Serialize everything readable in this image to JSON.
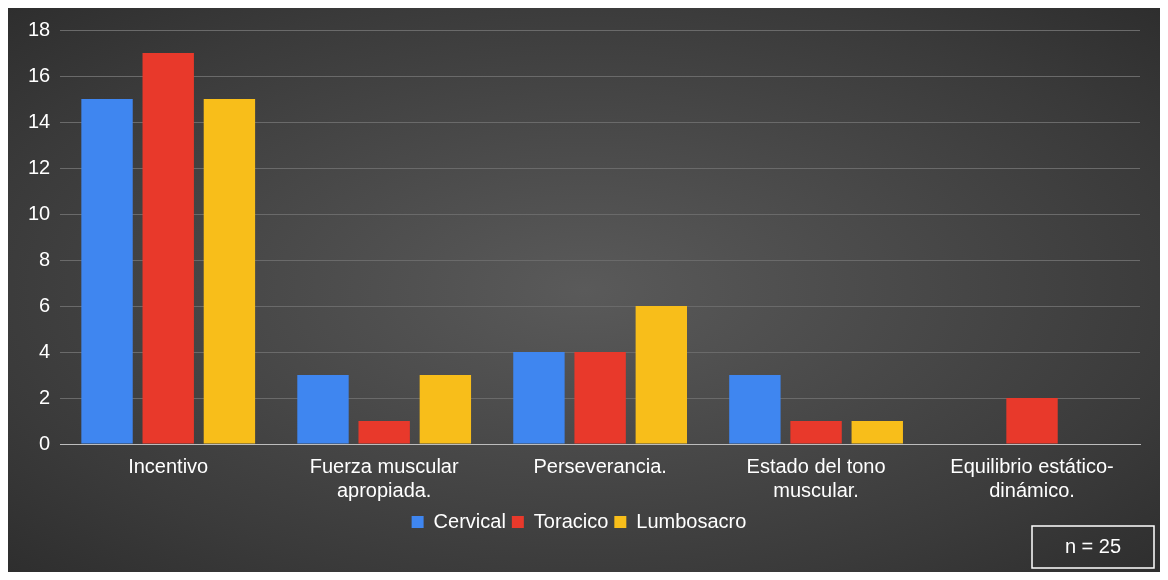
{
  "chart_data": {
    "type": "bar",
    "categories": [
      "Incentivo",
      "Fuerza muscular apropiada.",
      "Perseverancia.",
      "Estado del tono muscular.",
      "Equilibrio estático-dinámico."
    ],
    "series": [
      {
        "name": "Cervical",
        "color": "#3f86f0",
        "values": [
          15,
          3,
          4,
          3,
          0
        ]
      },
      {
        "name": "Toracico",
        "color": "#e8392b",
        "values": [
          17,
          1,
          4,
          1,
          2
        ]
      },
      {
        "name": "Lumbosacro",
        "color": "#f8be1a",
        "values": [
          15,
          3,
          6,
          1,
          0
        ]
      }
    ],
    "ylim": [
      0,
      18
    ],
    "yticks": [
      0,
      2,
      4,
      6,
      8,
      10,
      12,
      14,
      16,
      18
    ],
    "grid": "y",
    "legend": "bottom",
    "annotations": [
      "n = 25"
    ]
  }
}
